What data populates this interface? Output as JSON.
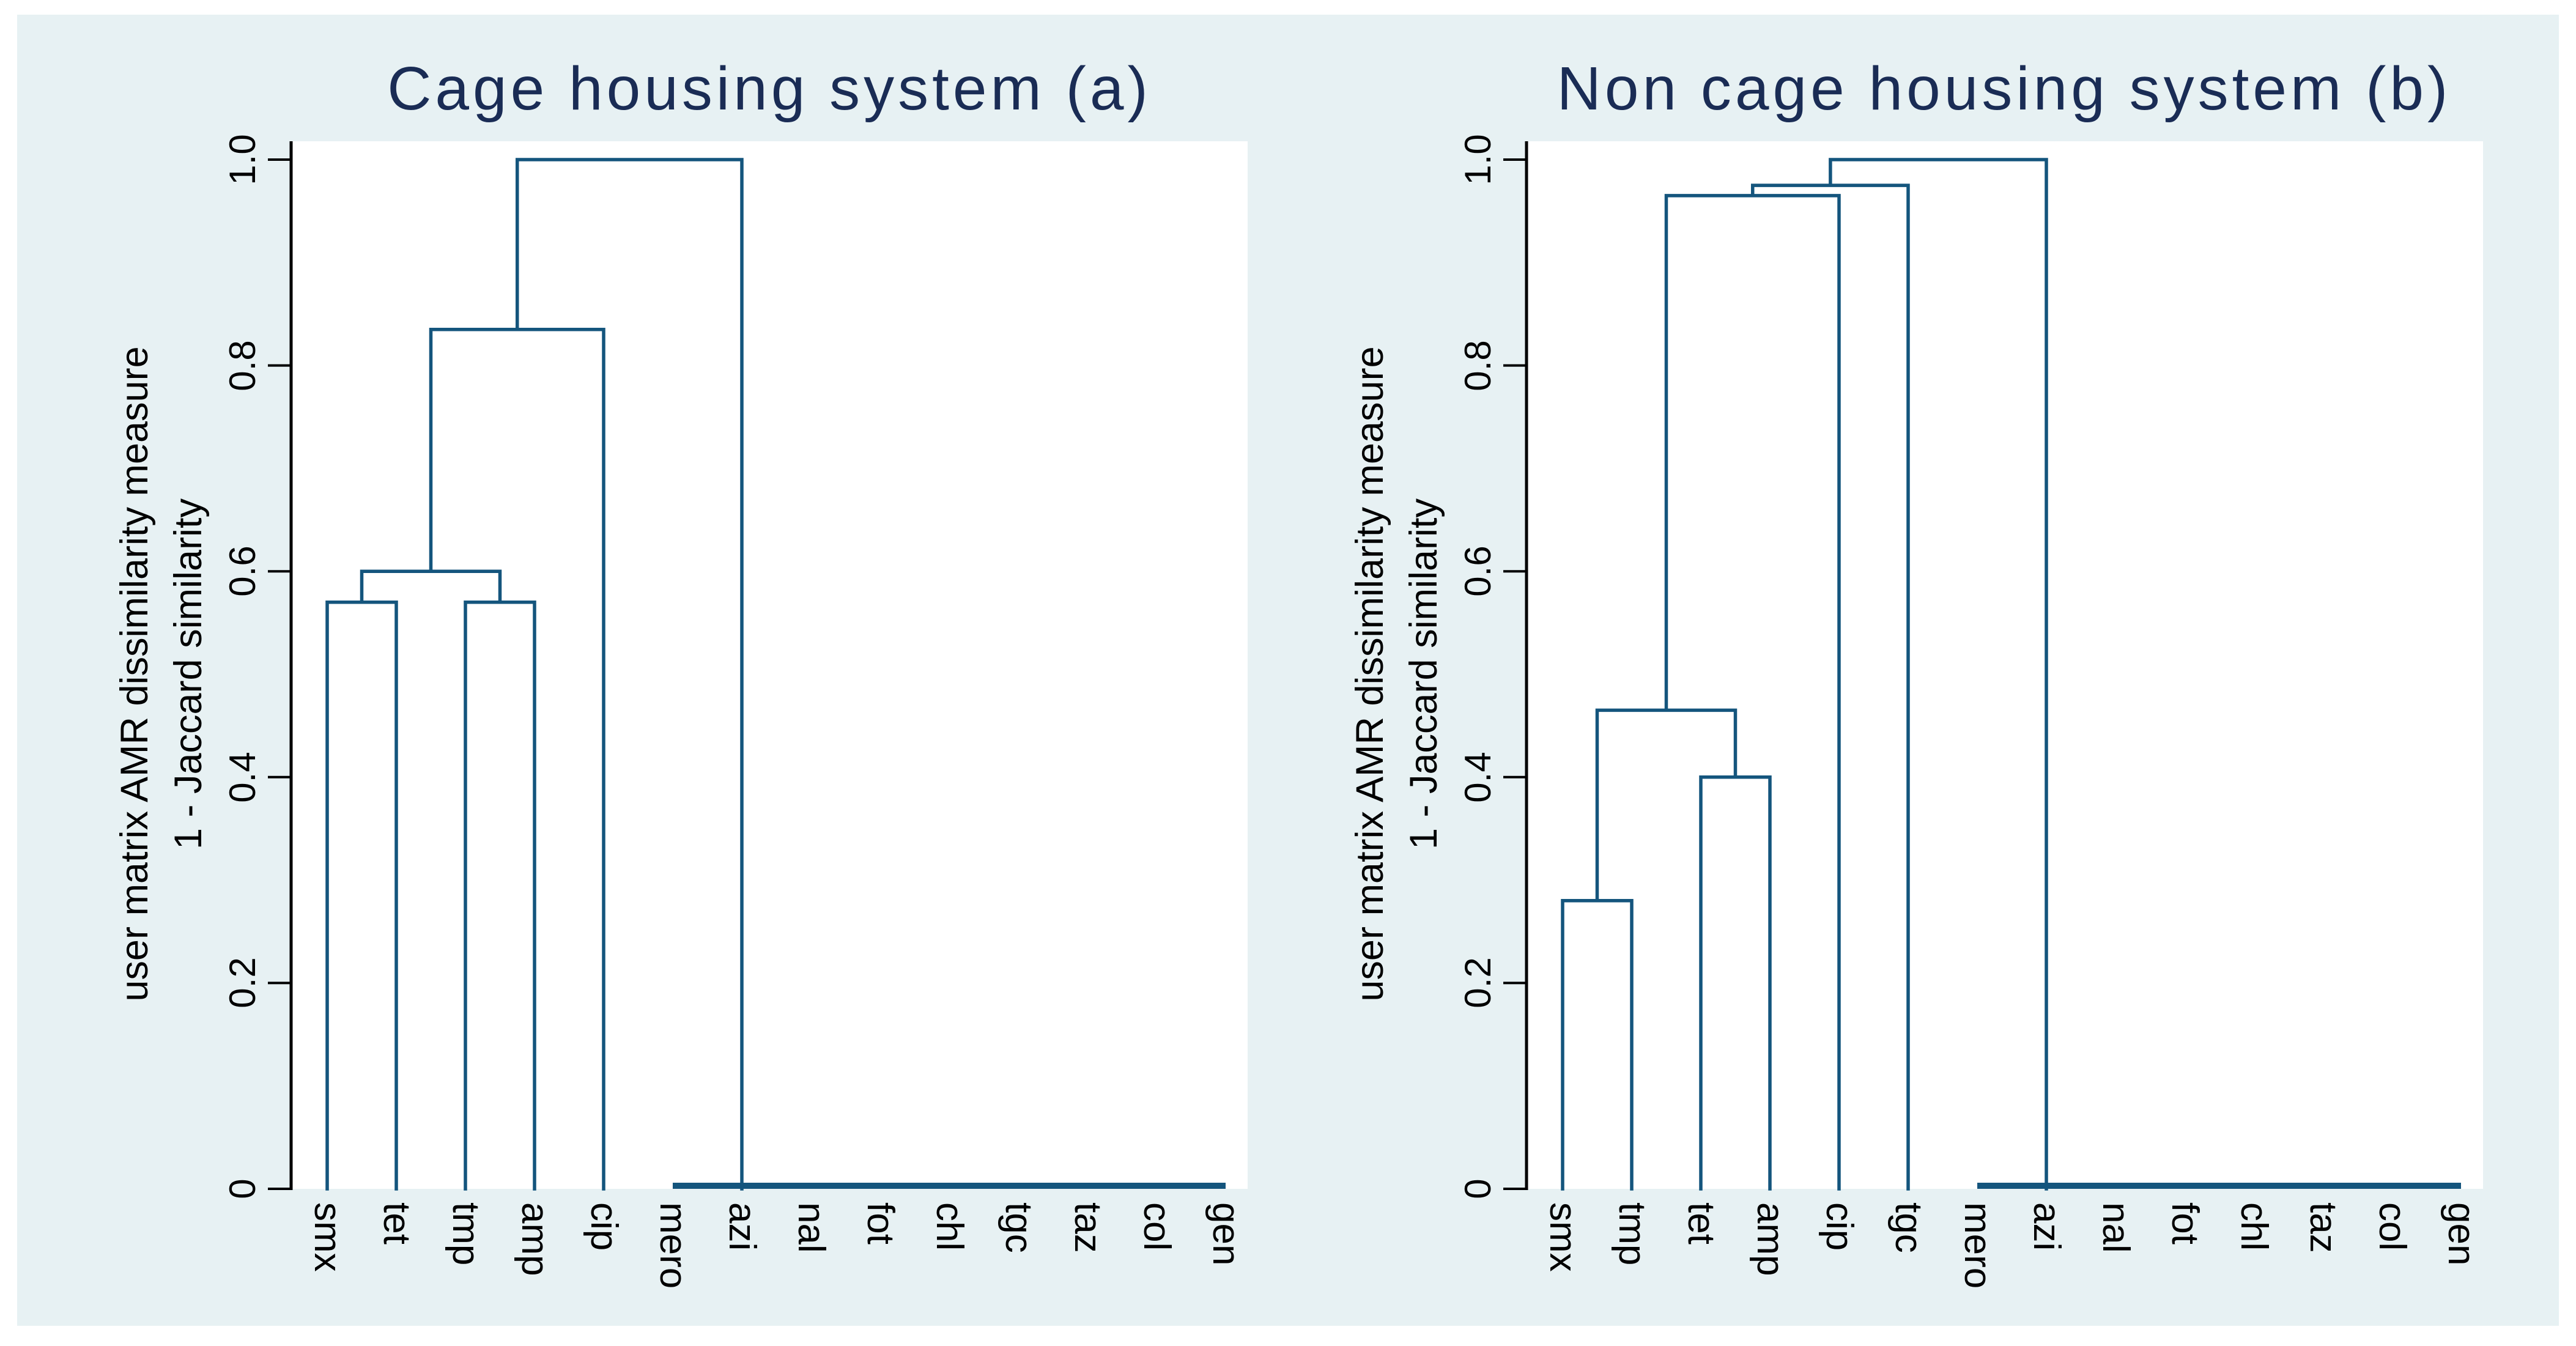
{
  "page": {
    "background": "#ffffff",
    "canvas_background": "#e7f1f3"
  },
  "style": {
    "dendrogram_line_color": "#14557d",
    "axis_color": "#000000",
    "title_color": "#1a2c55",
    "label_color": "#000000"
  },
  "axis": {
    "label_line1": "user matrix AMR dissimilarity measure",
    "label_line2": "1 - Jaccard similarity",
    "ylim": [
      0,
      1.0
    ],
    "ticks": [
      {
        "label": "0",
        "value": 0
      },
      {
        "label": "0.2",
        "value": 0.2
      },
      {
        "label": "0.4",
        "value": 0.4
      },
      {
        "label": "0.6",
        "value": 0.6
      },
      {
        "label": "0.8",
        "value": 0.8
      },
      {
        "label": "1.0",
        "value": 1.0
      }
    ]
  },
  "chart_data": [
    {
      "type": "dendrogram",
      "title": "Cage housing system (a)",
      "xlabel": "",
      "ylabel": [
        "user matrix AMR dissimilarity measure",
        "1 - Jaccard similarity"
      ],
      "ylim": [
        0,
        1.0
      ],
      "yticks": [
        0,
        0.2,
        0.4,
        0.6,
        0.8,
        1.0
      ],
      "grid": false,
      "leaves": [
        "smx",
        "tet",
        "tmp",
        "amp",
        "cip",
        "mero",
        "azi",
        "nal",
        "fot",
        "chl",
        "tgc",
        "taz",
        "col",
        "gen"
      ],
      "flat_cluster": {
        "leaves": [
          "mero",
          "azi",
          "nal",
          "fot",
          "chl",
          "tgc",
          "taz",
          "col",
          "gen"
        ],
        "height": 0,
        "riser_at": "azi"
      },
      "merges": [
        {
          "id": "M0",
          "children": [
            "smx",
            "tet"
          ],
          "height": 0.57
        },
        {
          "id": "M1",
          "children": [
            "tmp",
            "amp"
          ],
          "height": 0.57
        },
        {
          "id": "M2",
          "children": [
            "M0",
            "M1"
          ],
          "height": 0.6
        },
        {
          "id": "M3",
          "children": [
            "M2",
            "cip"
          ],
          "height": 0.835
        },
        {
          "id": "M4",
          "children": [
            "M3",
            "FLAT"
          ],
          "height": 1.0
        }
      ]
    },
    {
      "type": "dendrogram",
      "title": "Non cage housing system (b)",
      "xlabel": "",
      "ylabel": [
        "user matrix AMR dissimilarity measure",
        "1 - Jaccard similarity"
      ],
      "ylim": [
        0,
        1.0
      ],
      "yticks": [
        0,
        0.2,
        0.4,
        0.6,
        0.8,
        1.0
      ],
      "grid": false,
      "leaves": [
        "smx",
        "tmp",
        "tet",
        "amp",
        "cip",
        "tgc",
        "mero",
        "azi",
        "nal",
        "fot",
        "chl",
        "taz",
        "col",
        "gen"
      ],
      "flat_cluster": {
        "leaves": [
          "mero",
          "azi",
          "nal",
          "fot",
          "chl",
          "taz",
          "col",
          "gen"
        ],
        "height": 0,
        "riser_at": "azi"
      },
      "merges": [
        {
          "id": "M0",
          "children": [
            "smx",
            "tmp"
          ],
          "height": 0.28
        },
        {
          "id": "M1",
          "children": [
            "tet",
            "amp"
          ],
          "height": 0.4
        },
        {
          "id": "M2",
          "children": [
            "M0",
            "M1"
          ],
          "height": 0.465
        },
        {
          "id": "M3",
          "children": [
            "M2",
            "cip"
          ],
          "height": 0.965
        },
        {
          "id": "M4",
          "children": [
            "M3",
            "tgc"
          ],
          "height": 0.975
        },
        {
          "id": "M5",
          "children": [
            "M4",
            "FLAT"
          ],
          "height": 1.0
        }
      ]
    }
  ]
}
